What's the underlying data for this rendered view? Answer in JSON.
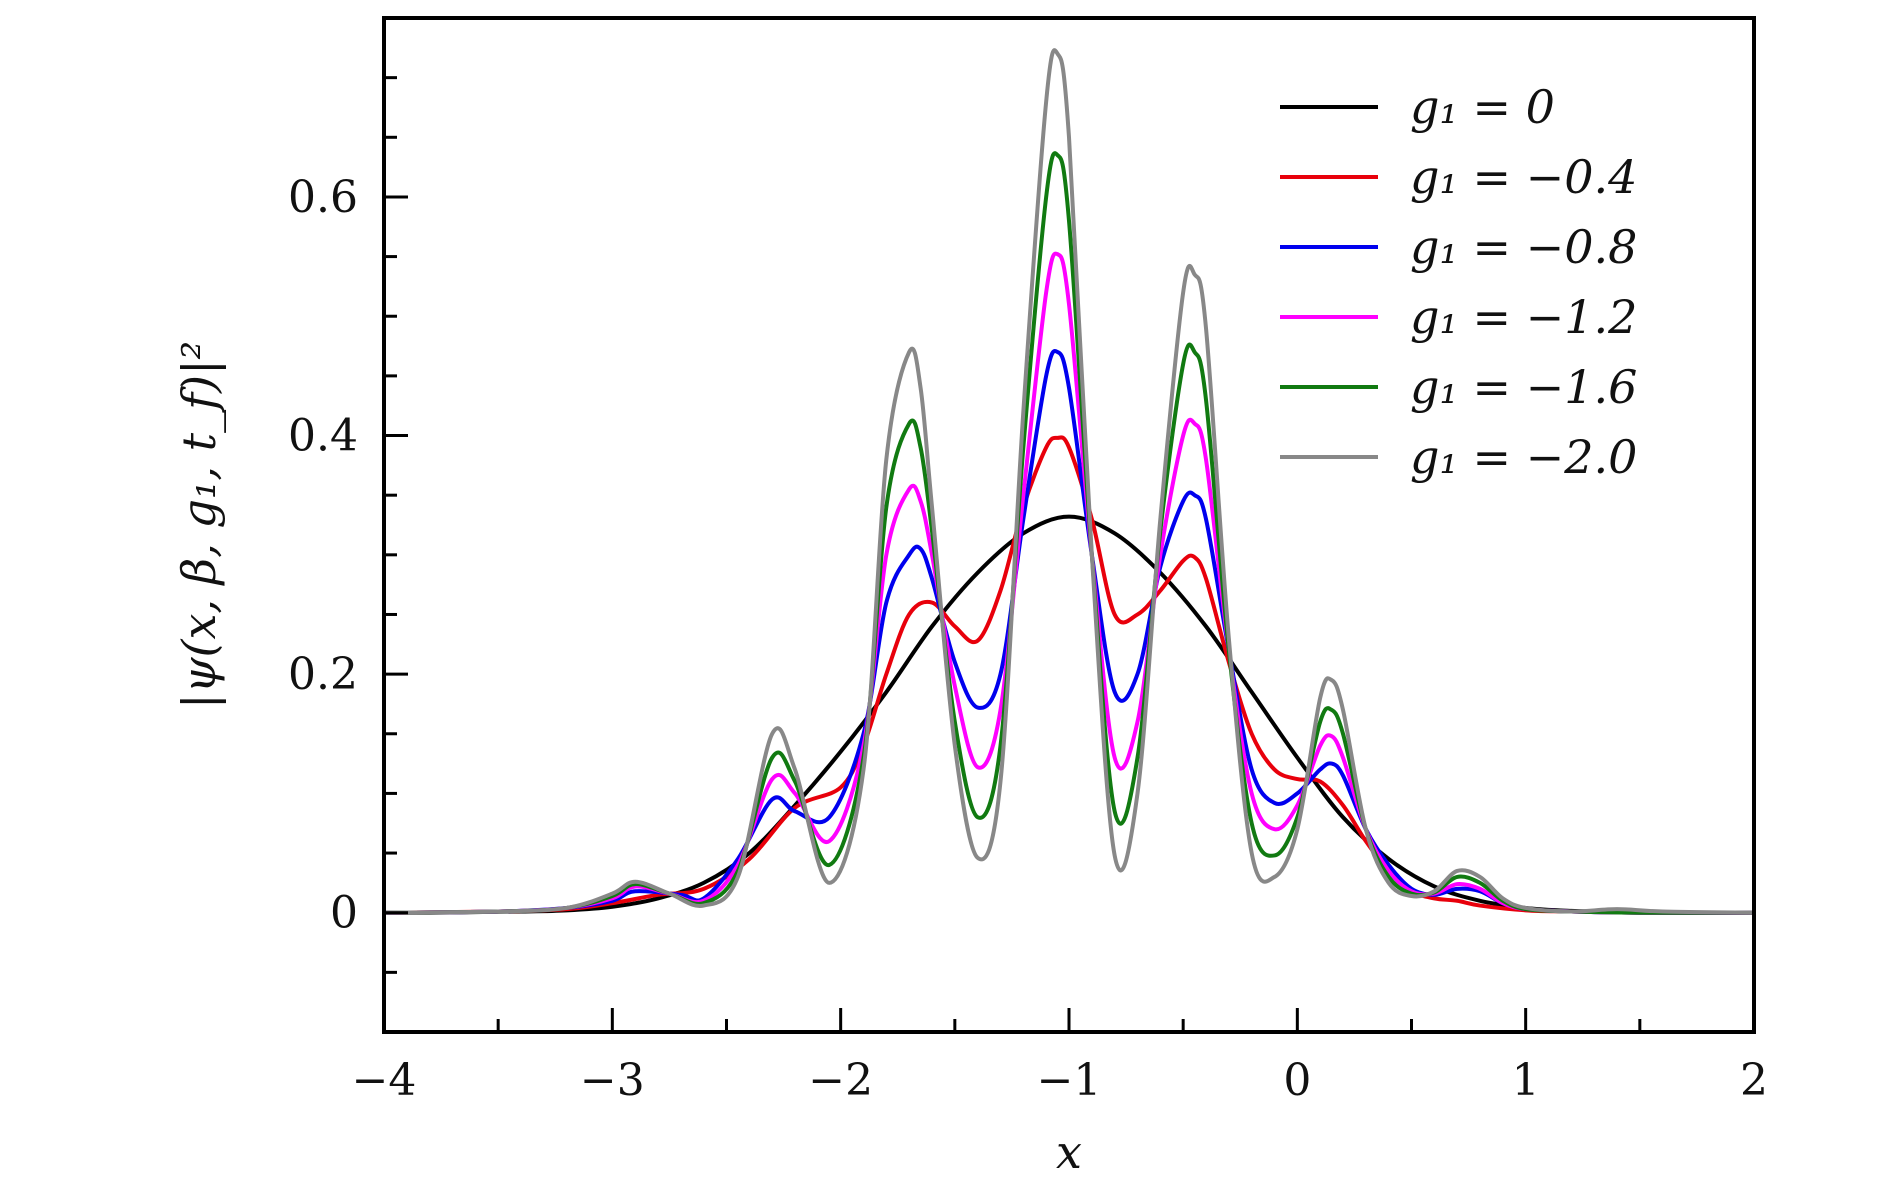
{
  "chart_data": {
    "type": "line",
    "xlabel": "x",
    "ylabel": "|ψ(x, β, g₁, t_f)|²",
    "xlim": [
      -4,
      2
    ],
    "ylim": [
      -0.1,
      0.75
    ],
    "x_ticks": [
      -4,
      -3,
      -2,
      -1,
      0,
      1,
      2
    ],
    "x_tick_labels": [
      "−4",
      "−3",
      "−2",
      "−1",
      "0",
      "1",
      "2"
    ],
    "y_ticks": [
      0,
      0.2,
      0.4,
      0.6
    ],
    "y_tick_labels": [
      "0",
      "0.2",
      "0.4",
      "0.6"
    ],
    "legend_position": "top-right",
    "grid": false,
    "series": [
      {
        "name": "g₁ = 0",
        "color": "#000000",
        "x": [
          -4.0,
          -3.8,
          -3.6,
          -3.4,
          -3.2,
          -3.0,
          -2.8,
          -2.6,
          -2.4,
          -2.2,
          -2.0,
          -1.8,
          -1.6,
          -1.4,
          -1.2,
          -1.0,
          -0.8,
          -0.6,
          -0.4,
          -0.2,
          0.0,
          0.2,
          0.4,
          0.6,
          0.8,
          1.0,
          1.2,
          1.4,
          1.6,
          1.8,
          2.0
        ],
        "y": [
          0.0,
          0.0,
          0.0005,
          0.001,
          0.002,
          0.005,
          0.012,
          0.025,
          0.05,
          0.09,
          0.135,
          0.185,
          0.24,
          0.285,
          0.318,
          0.332,
          0.318,
          0.285,
          0.24,
          0.185,
          0.13,
          0.08,
          0.045,
          0.022,
          0.01,
          0.004,
          0.0015,
          0.0005,
          0.0,
          0.0,
          0.0
        ]
      },
      {
        "name": "g₁ = −0.4",
        "color": "#e8000b",
        "x": [
          -4.0,
          -3.5,
          -3.2,
          -3.0,
          -2.8,
          -2.6,
          -2.4,
          -2.2,
          -2.0,
          -1.9,
          -1.8,
          -1.7,
          -1.6,
          -1.5,
          -1.4,
          -1.3,
          -1.2,
          -1.1,
          -1.05,
          -1.0,
          -0.9,
          -0.8,
          -0.7,
          -0.6,
          -0.5,
          -0.45,
          -0.4,
          -0.3,
          -0.2,
          -0.1,
          0.0,
          0.1,
          0.2,
          0.3,
          0.4,
          0.5,
          0.6,
          0.7,
          0.8,
          1.0,
          1.2,
          1.5,
          2.0
        ],
        "y": [
          0.0,
          0.001,
          0.003,
          0.008,
          0.015,
          0.02,
          0.045,
          0.088,
          0.105,
          0.14,
          0.2,
          0.25,
          0.26,
          0.24,
          0.228,
          0.27,
          0.34,
          0.39,
          0.398,
          0.39,
          0.33,
          0.25,
          0.25,
          0.27,
          0.295,
          0.298,
          0.28,
          0.21,
          0.15,
          0.12,
          0.112,
          0.11,
          0.09,
          0.06,
          0.035,
          0.018,
          0.012,
          0.01,
          0.006,
          0.002,
          0.001,
          0.0,
          0.0
        ]
      },
      {
        "name": "g₁ = −0.8",
        "color": "#0000ee",
        "x": [
          -4.0,
          -3.5,
          -3.2,
          -3.0,
          -2.9,
          -2.7,
          -2.6,
          -2.45,
          -2.3,
          -2.2,
          -2.05,
          -1.9,
          -1.8,
          -1.7,
          -1.65,
          -1.6,
          -1.5,
          -1.4,
          -1.3,
          -1.2,
          -1.1,
          -1.05,
          -1.0,
          -0.9,
          -0.8,
          -0.7,
          -0.6,
          -0.5,
          -0.45,
          -0.4,
          -0.3,
          -0.2,
          -0.1,
          0.0,
          0.1,
          0.15,
          0.2,
          0.3,
          0.4,
          0.5,
          0.6,
          0.7,
          0.8,
          0.9,
          1.0,
          1.2,
          1.5,
          2.0
        ],
        "y": [
          0.0,
          0.001,
          0.004,
          0.01,
          0.018,
          0.015,
          0.012,
          0.045,
          0.095,
          0.085,
          0.08,
          0.15,
          0.26,
          0.3,
          0.305,
          0.28,
          0.21,
          0.172,
          0.2,
          0.33,
          0.45,
          0.47,
          0.44,
          0.3,
          0.185,
          0.2,
          0.29,
          0.345,
          0.35,
          0.33,
          0.22,
          0.12,
          0.092,
          0.1,
          0.12,
          0.125,
          0.115,
          0.07,
          0.04,
          0.02,
          0.015,
          0.02,
          0.018,
          0.008,
          0.003,
          0.001,
          0.0,
          0.0
        ]
      },
      {
        "name": "g₁ = −1.2",
        "color": "#ff00ff",
        "x": [
          -4.0,
          -3.5,
          -3.2,
          -3.0,
          -2.9,
          -2.75,
          -2.6,
          -2.45,
          -2.3,
          -2.2,
          -2.05,
          -1.9,
          -1.8,
          -1.7,
          -1.65,
          -1.6,
          -1.5,
          -1.4,
          -1.3,
          -1.2,
          -1.1,
          -1.05,
          -1.0,
          -0.9,
          -0.8,
          -0.7,
          -0.6,
          -0.5,
          -0.45,
          -0.4,
          -0.3,
          -0.2,
          -0.1,
          0.0,
          0.1,
          0.15,
          0.2,
          0.3,
          0.4,
          0.5,
          0.6,
          0.7,
          0.8,
          0.9,
          1.0,
          1.2,
          1.5,
          2.0
        ],
        "y": [
          0.0,
          0.001,
          0.004,
          0.012,
          0.022,
          0.016,
          0.01,
          0.04,
          0.112,
          0.1,
          0.06,
          0.14,
          0.3,
          0.355,
          0.345,
          0.3,
          0.19,
          0.122,
          0.17,
          0.35,
          0.52,
          0.552,
          0.51,
          0.3,
          0.13,
          0.16,
          0.3,
          0.4,
          0.41,
          0.38,
          0.22,
          0.1,
          0.07,
          0.09,
          0.14,
          0.148,
          0.13,
          0.07,
          0.035,
          0.018,
          0.016,
          0.024,
          0.02,
          0.008,
          0.003,
          0.001,
          0.0,
          0.0
        ]
      },
      {
        "name": "g₁ = −1.6",
        "color": "#117a11",
        "x": [
          -4.0,
          -3.5,
          -3.2,
          -3.0,
          -2.9,
          -2.75,
          -2.6,
          -2.45,
          -2.3,
          -2.2,
          -2.05,
          -1.9,
          -1.8,
          -1.7,
          -1.65,
          -1.6,
          -1.5,
          -1.4,
          -1.3,
          -1.2,
          -1.1,
          -1.05,
          -1.0,
          -0.9,
          -0.8,
          -0.7,
          -0.6,
          -0.5,
          -0.45,
          -0.4,
          -0.3,
          -0.2,
          -0.1,
          0.0,
          0.1,
          0.15,
          0.2,
          0.3,
          0.4,
          0.5,
          0.6,
          0.7,
          0.8,
          0.9,
          1.0,
          1.2,
          1.5,
          2.0
        ],
        "y": [
          0.0,
          0.001,
          0.004,
          0.014,
          0.024,
          0.016,
          0.008,
          0.035,
          0.13,
          0.11,
          0.04,
          0.13,
          0.34,
          0.41,
          0.39,
          0.32,
          0.16,
          0.08,
          0.14,
          0.39,
          0.6,
          0.635,
          0.58,
          0.3,
          0.085,
          0.13,
          0.32,
          0.46,
          0.47,
          0.43,
          0.22,
          0.075,
          0.048,
          0.08,
          0.16,
          0.17,
          0.15,
          0.07,
          0.03,
          0.016,
          0.017,
          0.03,
          0.025,
          0.01,
          0.003,
          0.001,
          0.0,
          0.0
        ]
      },
      {
        "name": "g₁ = −2.0",
        "color": "#888888",
        "x": [
          -4.0,
          -3.5,
          -3.2,
          -3.0,
          -2.9,
          -2.75,
          -2.6,
          -2.45,
          -2.3,
          -2.2,
          -2.05,
          -1.9,
          -1.8,
          -1.7,
          -1.65,
          -1.6,
          -1.5,
          -1.4,
          -1.3,
          -1.2,
          -1.1,
          -1.05,
          -1.0,
          -0.9,
          -0.8,
          -0.7,
          -0.6,
          -0.5,
          -0.45,
          -0.4,
          -0.3,
          -0.2,
          -0.1,
          0.0,
          0.1,
          0.15,
          0.2,
          0.3,
          0.4,
          0.5,
          0.6,
          0.7,
          0.8,
          0.9,
          1.0,
          1.2,
          1.4,
          1.6,
          2.0
        ],
        "y": [
          0.0,
          0.001,
          0.004,
          0.016,
          0.026,
          0.016,
          0.006,
          0.03,
          0.15,
          0.12,
          0.025,
          0.12,
          0.38,
          0.47,
          0.44,
          0.34,
          0.14,
          0.046,
          0.11,
          0.42,
          0.68,
          0.72,
          0.65,
          0.3,
          0.048,
          0.1,
          0.33,
          0.52,
          0.535,
          0.49,
          0.23,
          0.05,
          0.03,
          0.07,
          0.18,
          0.195,
          0.17,
          0.07,
          0.025,
          0.014,
          0.018,
          0.035,
          0.03,
          0.012,
          0.004,
          0.001,
          0.003,
          0.001,
          0.0
        ]
      }
    ]
  }
}
